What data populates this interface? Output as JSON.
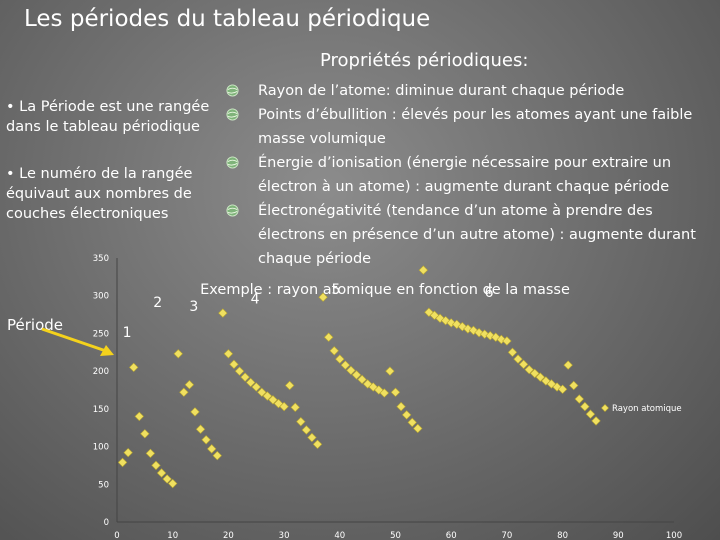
{
  "slide": {
    "title": "Les périodes du tableau périodique",
    "subtitle": "Propriétés périodiques:",
    "left_bullets": [
      "• La Période est une rangée dans le tableau périodique",
      "• Le numéro de la rangée équivaut aux nombres de couches électroniques"
    ],
    "properties": [
      "Rayon de l’atome: diminue durant chaque période",
      "Points d’ébullition : élevés pour les atomes ayant une faible masse volumique",
      "Énergie d’ionisation (énergie nécessaire pour extraire un électron à un atome) : augmente durant chaque période",
      "Électronégativité (tendance d’un atome à prendre des électrons en présence d’un autre atome) : augmente durant chaque période"
    ],
    "periode_label": "Période",
    "bullet_icon": "globe-icon",
    "colors": {
      "marker": "#f0e060",
      "marker_edge": "#b8a630",
      "arrow": "#f4d21c"
    }
  },
  "chart_data": {
    "type": "scatter",
    "title": "Exemple : rayon atomique en fonction de la masse",
    "xlabel": "",
    "ylabel": "",
    "xlim": [
      0,
      100
    ],
    "ylim": [
      0,
      350
    ],
    "x_ticks": [
      "0",
      "10",
      "20",
      "30",
      "40",
      "50",
      "60",
      "70",
      "80",
      "90",
      "100"
    ],
    "y_ticks": [
      "0",
      "50",
      "100",
      "150",
      "200",
      "250",
      "300",
      "350"
    ],
    "legend": {
      "label": "Rayon atomique",
      "position": "right"
    },
    "period_labels": [
      {
        "text": "1",
        "x": 1,
        "y": 245
      },
      {
        "text": "2",
        "x": 6.5,
        "y": 285
      },
      {
        "text": "3",
        "x": 13,
        "y": 280
      },
      {
        "text": "4",
        "x": 24,
        "y": 290
      },
      {
        "text": "5",
        "x": 38.5,
        "y": 302
      },
      {
        "text": "6",
        "x": 66,
        "y": 298
      }
    ],
    "series": [
      {
        "name": "Rayon atomique",
        "points": [
          [
            1,
            79
          ],
          [
            2,
            92
          ],
          [
            3,
            205
          ],
          [
            4,
            140
          ],
          [
            5,
            117
          ],
          [
            6,
            91
          ],
          [
            7,
            75
          ],
          [
            8,
            65
          ],
          [
            9,
            57
          ],
          [
            10,
            51
          ],
          [
            11,
            223
          ],
          [
            12,
            172
          ],
          [
            13,
            182
          ],
          [
            14,
            146
          ],
          [
            15,
            123
          ],
          [
            16,
            109
          ],
          [
            17,
            97
          ],
          [
            18,
            88
          ],
          [
            19,
            277
          ],
          [
            20,
            223
          ],
          [
            21,
            209
          ],
          [
            22,
            200
          ],
          [
            23,
            192
          ],
          [
            24,
            185
          ],
          [
            25,
            179
          ],
          [
            26,
            172
          ],
          [
            27,
            167
          ],
          [
            28,
            162
          ],
          [
            29,
            157
          ],
          [
            30,
            153
          ],
          [
            31,
            181
          ],
          [
            32,
            152
          ],
          [
            33,
            133
          ],
          [
            34,
            122
          ],
          [
            35,
            112
          ],
          [
            36,
            103
          ],
          [
            37,
            298
          ],
          [
            38,
            245
          ],
          [
            39,
            227
          ],
          [
            40,
            216
          ],
          [
            41,
            208
          ],
          [
            42,
            201
          ],
          [
            43,
            195
          ],
          [
            44,
            189
          ],
          [
            45,
            183
          ],
          [
            46,
            179
          ],
          [
            47,
            175
          ],
          [
            48,
            171
          ],
          [
            49,
            200
          ],
          [
            50,
            172
          ],
          [
            51,
            153
          ],
          [
            52,
            142
          ],
          [
            53,
            132
          ],
          [
            54,
            124
          ],
          [
            55,
            334
          ],
          [
            56,
            278
          ],
          [
            57,
            274
          ],
          [
            58,
            270
          ],
          [
            59,
            267
          ],
          [
            60,
            264
          ],
          [
            61,
            262
          ],
          [
            62,
            259
          ],
          [
            63,
            256
          ],
          [
            64,
            254
          ],
          [
            65,
            251
          ],
          [
            66,
            249
          ],
          [
            67,
            247
          ],
          [
            68,
            245
          ],
          [
            69,
            242
          ],
          [
            70,
            240
          ],
          [
            71,
            225
          ],
          [
            72,
            216
          ],
          [
            73,
            209
          ],
          [
            74,
            202
          ],
          [
            75,
            197
          ],
          [
            76,
            192
          ],
          [
            77,
            187
          ],
          [
            78,
            183
          ],
          [
            79,
            179
          ],
          [
            80,
            176
          ],
          [
            81,
            208
          ],
          [
            82,
            181
          ],
          [
            83,
            163
          ],
          [
            84,
            153
          ],
          [
            85,
            143
          ],
          [
            86,
            134
          ]
        ]
      }
    ]
  }
}
